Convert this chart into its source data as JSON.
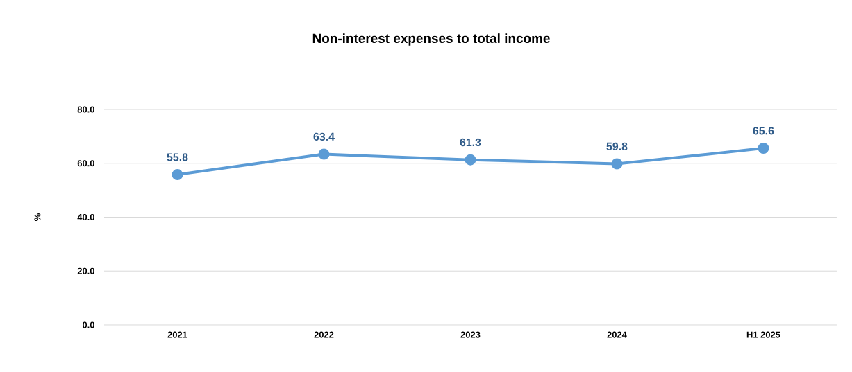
{
  "chart_data": {
    "type": "line",
    "title": "Non-interest expenses to total income",
    "ylabel": "%",
    "categories": [
      "2021",
      "2022",
      "2023",
      "2024",
      "H1 2025"
    ],
    "values": [
      55.8,
      63.4,
      61.3,
      59.8,
      65.6
    ],
    "color": "#5b9bd5",
    "marker": "circle",
    "line_style": "solid",
    "data_labels": true,
    "grid": "y",
    "ylim": [
      0,
      80
    ],
    "yticks": [
      {
        "value": 0,
        "label": "0.0"
      },
      {
        "value": 20,
        "label": "20.0"
      },
      {
        "value": 40,
        "label": "40.0"
      },
      {
        "value": 60,
        "label": "60.0"
      },
      {
        "value": 80,
        "label": "80.0"
      }
    ]
  }
}
